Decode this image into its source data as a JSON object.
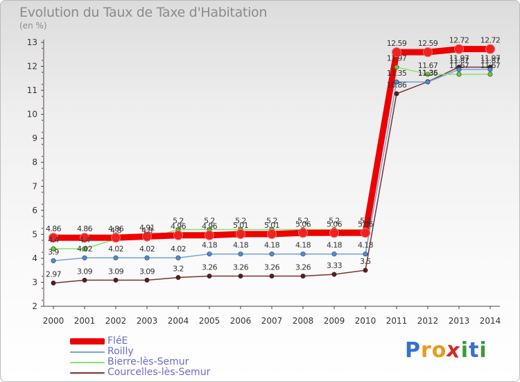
{
  "title": "Evolution du Taux de Taxe d'Habitation",
  "unit_label": "(en %)",
  "brand": {
    "letters": [
      "P",
      "r",
      "o",
      "x",
      "i",
      "t",
      "i"
    ]
  },
  "chart_data": {
    "type": "line",
    "title": "Evolution du Taux de Taxe d'Habitation",
    "ylabel": "(en %)",
    "xlabel": "",
    "ylim": [
      2,
      13
    ],
    "yticks": [
      2,
      3,
      4,
      5,
      6,
      7,
      8,
      9,
      10,
      11,
      12,
      13
    ],
    "grid": false,
    "legend_position": "bottom-left",
    "x": [
      "2000",
      "2001",
      "2002",
      "2003",
      "2004",
      "2005",
      "2006",
      "2007",
      "2008",
      "2009",
      "2010",
      "2011",
      "2012",
      "2013",
      "2014"
    ],
    "series": [
      {
        "name": "FléE",
        "color": "#ee0000",
        "marker_color": "#ee2222",
        "values": [
          4.86,
          4.86,
          4.86,
          4.91,
          4.96,
          4.96,
          5.01,
          5.01,
          5.06,
          5.06,
          5.06,
          12.59,
          12.59,
          12.72,
          12.72
        ],
        "labels": [
          "4.86",
          "4.86",
          "4.86",
          "4.91",
          "4.96",
          "4.96",
          "5.01",
          "5.01",
          "5.06",
          "5.06",
          "5.06",
          "12.59",
          "12.59",
          "12.72",
          "12.72"
        ]
      },
      {
        "name": "Roilly",
        "color": "#6fa3d8",
        "marker_color": "#4a90d9",
        "values": [
          3.9,
          4.02,
          4.02,
          4.02,
          4.02,
          4.18,
          4.18,
          4.18,
          4.18,
          4.18,
          4.18,
          11.35,
          11.35,
          11.87,
          11.87
        ],
        "labels": [
          "3.9",
          "4.02",
          "4.02",
          "4.02",
          "4.02",
          "4.18",
          "4.18",
          "4.18",
          "4.18",
          "4.18",
          "4.18",
          "11.35",
          "11.35",
          "11.87",
          "11.87"
        ]
      },
      {
        "name": "Bierre-lès-Semur",
        "color": "#88e070",
        "marker_color": "#66cc33",
        "values": [
          4.4,
          4.4,
          4.8,
          4.8,
          5.2,
          5.2,
          5.2,
          5.2,
          5.2,
          5.2,
          5.2,
          11.97,
          11.67,
          11.67,
          11.67
        ],
        "labels": [
          "4.4",
          "4.4",
          "4.8",
          "4.8",
          "5.2",
          "5.2",
          "5.2",
          "5.2",
          "5.2",
          "5.2",
          "5.2",
          "11.97",
          "11.67",
          "11.67",
          "11.67"
        ]
      },
      {
        "name": "Courcelles-lès-Semur",
        "color": "#7a3030",
        "marker_color": "#5a1a1a",
        "values": [
          2.97,
          3.09,
          3.09,
          3.09,
          3.2,
          3.26,
          3.26,
          3.26,
          3.26,
          3.33,
          3.5,
          10.86,
          11.36,
          11.97,
          11.97
        ],
        "labels": [
          "2.97",
          "3.09",
          "3.09",
          "3.09",
          "3.2",
          "3.26",
          "3.26",
          "3.26",
          "3.26",
          "3.33",
          "3.5",
          "10.86",
          "11.36",
          "11.97",
          "11.97"
        ]
      }
    ]
  }
}
